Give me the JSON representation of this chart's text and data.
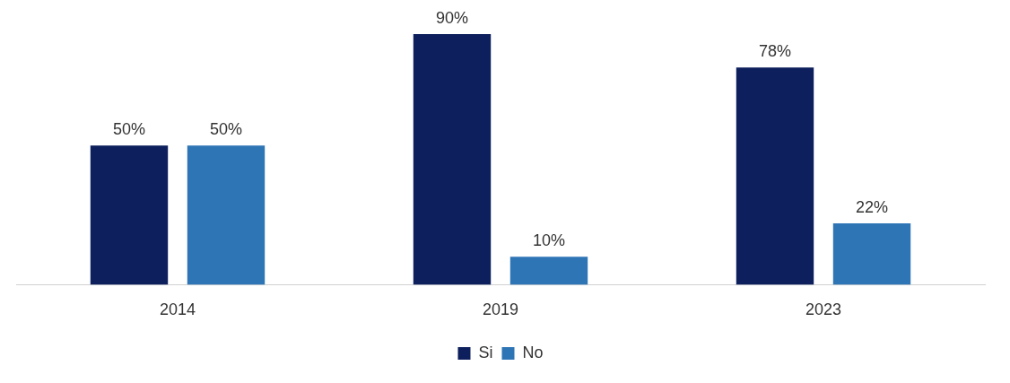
{
  "chart_data": {
    "type": "bar",
    "categories": [
      "2014",
      "2019",
      "2023"
    ],
    "series": [
      {
        "name": "Si",
        "color": "#0d1f5c",
        "values": [
          50,
          90,
          78
        ],
        "value_labels": [
          "50%",
          "90%",
          "78%"
        ]
      },
      {
        "name": "No",
        "color": "#2e75b6",
        "values": [
          50,
          10,
          22
        ],
        "value_labels": [
          "50%",
          "10%",
          "22%"
        ]
      }
    ],
    "legend": "bottom",
    "grid": false
  }
}
